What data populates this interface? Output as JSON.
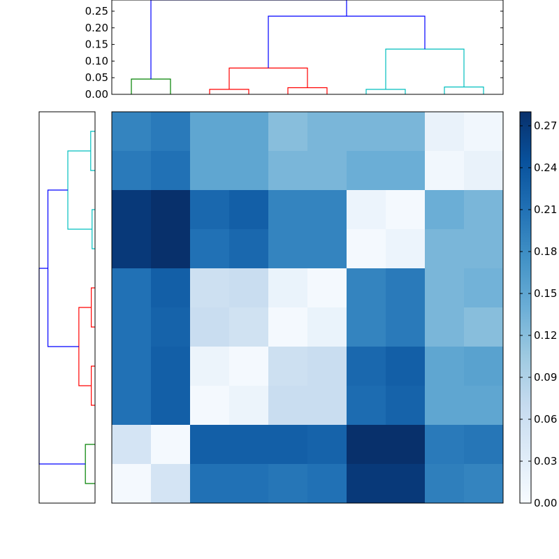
{
  "chart_data": [
    {
      "type": "heatmap",
      "colormap": "Blues",
      "vmin": 0,
      "vmax": 0.28,
      "matrix": [
        [
          0.19,
          0.2,
          0.15,
          0.15,
          0.12,
          0.13,
          0.13,
          0.13,
          0.02,
          0.008
        ],
        [
          0.2,
          0.21,
          0.15,
          0.15,
          0.13,
          0.13,
          0.14,
          0.14,
          0.008,
          0.02
        ],
        [
          0.27,
          0.28,
          0.22,
          0.23,
          0.19,
          0.19,
          0.015,
          0.004,
          0.14,
          0.13
        ],
        [
          0.27,
          0.28,
          0.21,
          0.22,
          0.19,
          0.19,
          0.004,
          0.015,
          0.13,
          0.13
        ],
        [
          0.21,
          0.23,
          0.06,
          0.065,
          0.018,
          0.004,
          0.19,
          0.2,
          0.13,
          0.135
        ],
        [
          0.21,
          0.225,
          0.065,
          0.055,
          0.004,
          0.018,
          0.19,
          0.2,
          0.13,
          0.12
        ],
        [
          0.21,
          0.23,
          0.016,
          0.004,
          0.06,
          0.065,
          0.22,
          0.23,
          0.15,
          0.155
        ],
        [
          0.21,
          0.23,
          0.004,
          0.016,
          0.065,
          0.065,
          0.215,
          0.225,
          0.15,
          0.15
        ],
        [
          0.05,
          0.004,
          0.23,
          0.23,
          0.23,
          0.225,
          0.28,
          0.28,
          0.2,
          0.205
        ],
        [
          0.004,
          0.05,
          0.21,
          0.21,
          0.205,
          0.21,
          0.27,
          0.27,
          0.195,
          0.19
        ]
      ],
      "colorbar": {
        "ticks": [
          "0.00",
          "0.03",
          "0.06",
          "0.09",
          "0.12",
          "0.15",
          "0.18",
          "0.21",
          "0.24",
          "0.27"
        ]
      }
    },
    {
      "type": "dendrogram",
      "orientation": "top",
      "ylim": [
        0,
        0.2836
      ],
      "yticks": [
        "0.00",
        "0.05",
        "0.10",
        "0.15",
        "0.20",
        "0.25"
      ],
      "links": [
        {
          "left": 0,
          "right": 1,
          "height": 0.046,
          "left_h": 0,
          "right_h": 0,
          "color": "#008000"
        },
        {
          "left": 2,
          "right": 3,
          "height": 0.015,
          "left_h": 0,
          "right_h": 0,
          "color": "#ff0000"
        },
        {
          "left": 4,
          "right": 5,
          "height": 0.02,
          "left_h": 0,
          "right_h": 0,
          "color": "#ff0000"
        },
        {
          "left": 2.5,
          "right": 4.5,
          "height": 0.079,
          "left_h": 0.015,
          "right_h": 0.02,
          "color": "#ff0000"
        },
        {
          "left": 6,
          "right": 7,
          "height": 0.015,
          "left_h": 0,
          "right_h": 0,
          "color": "#00bfbf"
        },
        {
          "left": 8,
          "right": 9,
          "height": 0.022,
          "left_h": 0,
          "right_h": 0,
          "color": "#00bfbf"
        },
        {
          "left": 6.5,
          "right": 8.5,
          "height": 0.136,
          "left_h": 0.015,
          "right_h": 0.022,
          "color": "#00bfbf"
        },
        {
          "left": 3.5,
          "right": 7.5,
          "height": 0.235,
          "left_h": 0.079,
          "right_h": 0.136,
          "color": "#0000ff"
        },
        {
          "left": 0.5,
          "right": 5.5,
          "height": 0.2836,
          "left_h": 0.046,
          "right_h": 0.235,
          "color": "#0000ff"
        }
      ]
    },
    {
      "type": "dendrogram",
      "orientation": "left",
      "xlim": [
        0,
        0.2836
      ],
      "links": [
        {
          "left": 0,
          "right": 1,
          "height": 0.022,
          "left_h": 0,
          "right_h": 0,
          "color": "#00bfbf"
        },
        {
          "left": 2,
          "right": 3,
          "height": 0.015,
          "left_h": 0,
          "right_h": 0,
          "color": "#00bfbf"
        },
        {
          "left": 0.5,
          "right": 2.5,
          "height": 0.138,
          "left_h": 0.022,
          "right_h": 0.015,
          "color": "#00bfbf"
        },
        {
          "left": 4,
          "right": 5,
          "height": 0.019,
          "left_h": 0,
          "right_h": 0,
          "color": "#ff0000"
        },
        {
          "left": 6,
          "right": 7,
          "height": 0.019,
          "left_h": 0,
          "right_h": 0,
          "color": "#ff0000"
        },
        {
          "left": 4.5,
          "right": 6.5,
          "height": 0.082,
          "left_h": 0.019,
          "right_h": 0.019,
          "color": "#ff0000"
        },
        {
          "left": 1.5,
          "right": 5.5,
          "height": 0.239,
          "left_h": 0.138,
          "right_h": 0.082,
          "color": "#0000ff"
        },
        {
          "left": 8,
          "right": 9,
          "height": 0.049,
          "left_h": 0,
          "right_h": 0,
          "color": "#008000"
        },
        {
          "left": 3.5,
          "right": 8.5,
          "height": 0.2836,
          "left_h": 0.239,
          "right_h": 0.049,
          "color": "#0000ff"
        }
      ]
    }
  ]
}
